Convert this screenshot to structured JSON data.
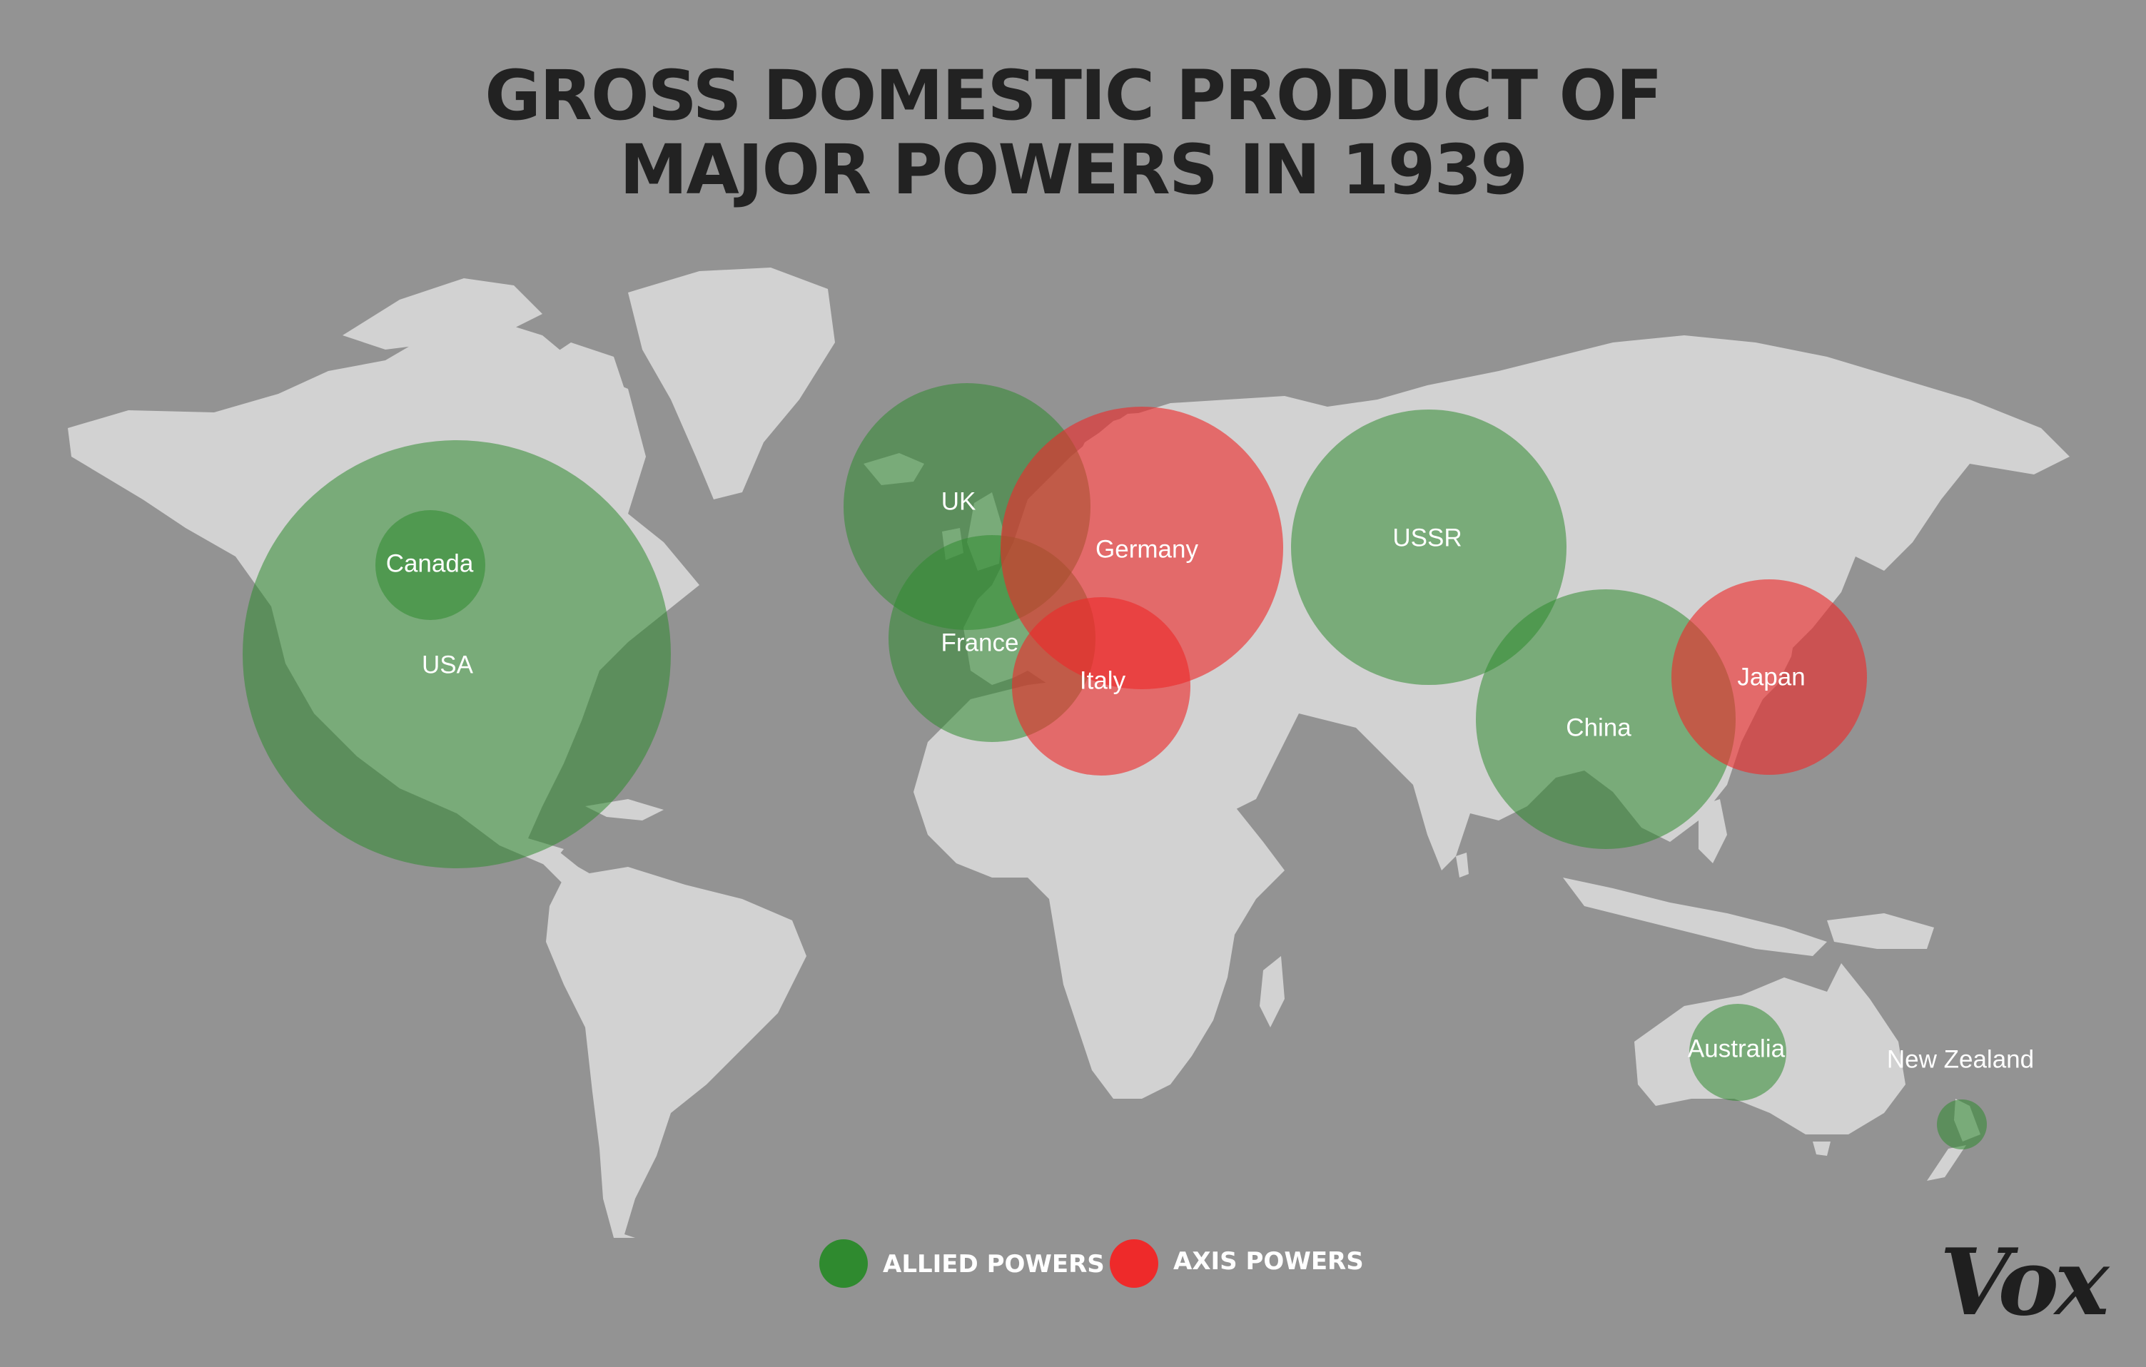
{
  "title": {
    "line1": "GROSS DOMESTIC PRODUCT OF",
    "line2": "MAJOR POWERS IN 1939"
  },
  "colors": {
    "background": "#939393",
    "land": "#d2d2d2",
    "allied": "#2f8a2f",
    "axis": "#ee2a2a",
    "title": "#222222"
  },
  "map": {
    "projection": "world-equirectangular",
    "countries": [
      {
        "name": "USA",
        "group": "allied"
      },
      {
        "name": "Canada",
        "group": "allied"
      },
      {
        "name": "UK",
        "group": "allied"
      },
      {
        "name": "France",
        "group": "allied"
      },
      {
        "name": "USSR",
        "group": "allied"
      },
      {
        "name": "China",
        "group": "allied"
      },
      {
        "name": "Australia",
        "group": "allied"
      },
      {
        "name": "New Zealand",
        "group": "allied"
      },
      {
        "name": "Germany",
        "group": "axis"
      },
      {
        "name": "Italy",
        "group": "axis"
      },
      {
        "name": "Japan",
        "group": "axis"
      }
    ]
  },
  "legend": {
    "allied_label": "ALLIED POWERS",
    "axis_label": "AXIS POWERS"
  },
  "logo": {
    "text": "Vox"
  }
}
